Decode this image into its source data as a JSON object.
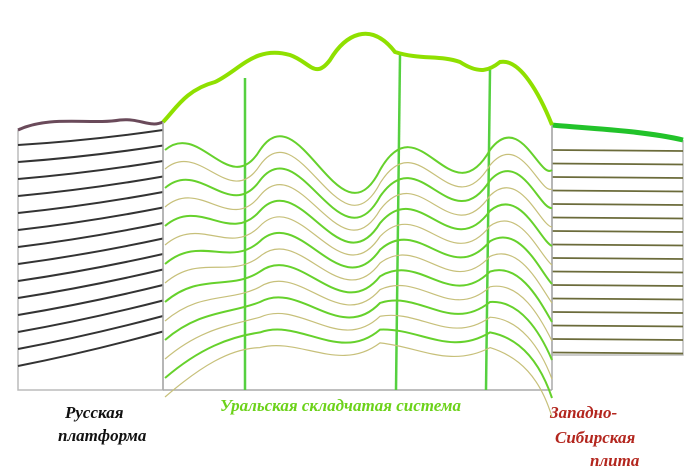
{
  "labels": {
    "left": [
      "Русская",
      "платформа"
    ],
    "center": [
      "Уральская складчатая система"
    ],
    "right": [
      "Западно-",
      "Сибирская",
      "плита"
    ]
  }
}
